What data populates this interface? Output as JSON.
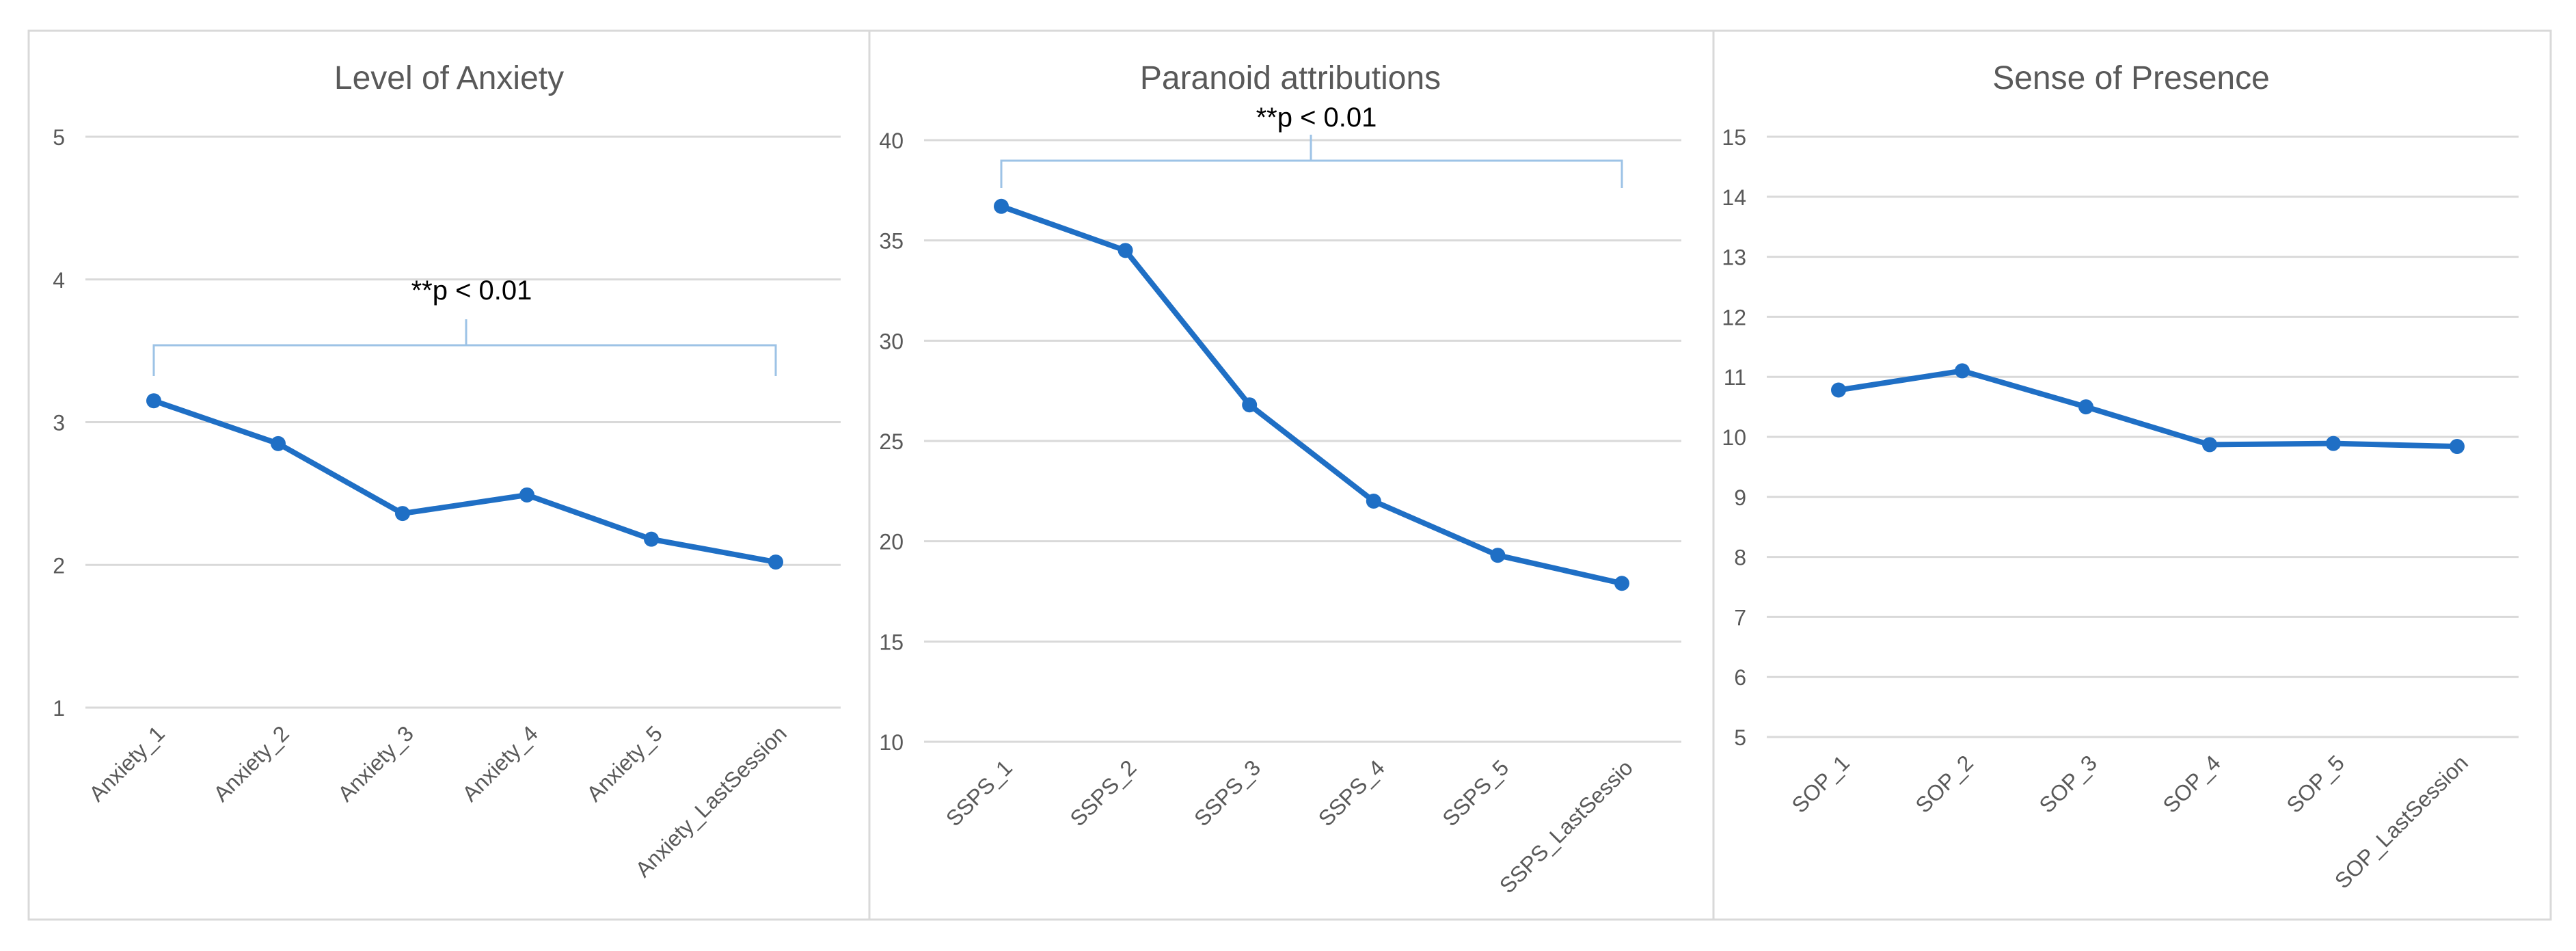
{
  "chart_data": [
    {
      "type": "line",
      "title": "Level of Anxiety",
      "categories": [
        "Anxiety_1",
        "Anxiety_2",
        "Anxiety_3",
        "Anxiety_4",
        "Anxiety_5",
        "Anxiety_LastSession"
      ],
      "series": [
        {
          "values": [
            3.15,
            2.85,
            2.36,
            2.49,
            2.18,
            2.02
          ]
        }
      ],
      "ylim": [
        1,
        5
      ],
      "yticks": [
        "1",
        "2",
        "3",
        "4",
        "5"
      ],
      "grid": true,
      "annotation": "**p < 0.01",
      "line_color": "#1f6fc5"
    },
    {
      "type": "line",
      "title": "Paranoid attributions",
      "categories": [
        "SSPS_1",
        "SSPS_2",
        "SSPS_3",
        "SSPS_4",
        "SSPS_5",
        "SSPS_LastSessio"
      ],
      "series": [
        {
          "values": [
            36.7,
            34.5,
            26.8,
            22.0,
            19.3,
            17.9
          ]
        }
      ],
      "ylim": [
        10,
        40
      ],
      "yticks": [
        "10",
        "15",
        "20",
        "25",
        "30",
        "35",
        "40"
      ],
      "grid": true,
      "annotation": "**p < 0.01",
      "line_color": "#1f6fc5"
    },
    {
      "type": "line",
      "title": "Sense of Presence",
      "categories": [
        "SOP_1",
        "SOP_2",
        "SOP_3",
        "SOP_4",
        "SOP_5",
        "SOP_LastSession"
      ],
      "series": [
        {
          "values": [
            10.78,
            11.1,
            10.5,
            9.87,
            9.89,
            9.84
          ]
        }
      ],
      "ylim": [
        5,
        15
      ],
      "yticks": [
        "5",
        "6",
        "7",
        "8",
        "9",
        "10",
        "11",
        "12",
        "13",
        "14",
        "15"
      ],
      "grid": true,
      "annotation": "",
      "line_color": "#1f6fc5"
    }
  ]
}
